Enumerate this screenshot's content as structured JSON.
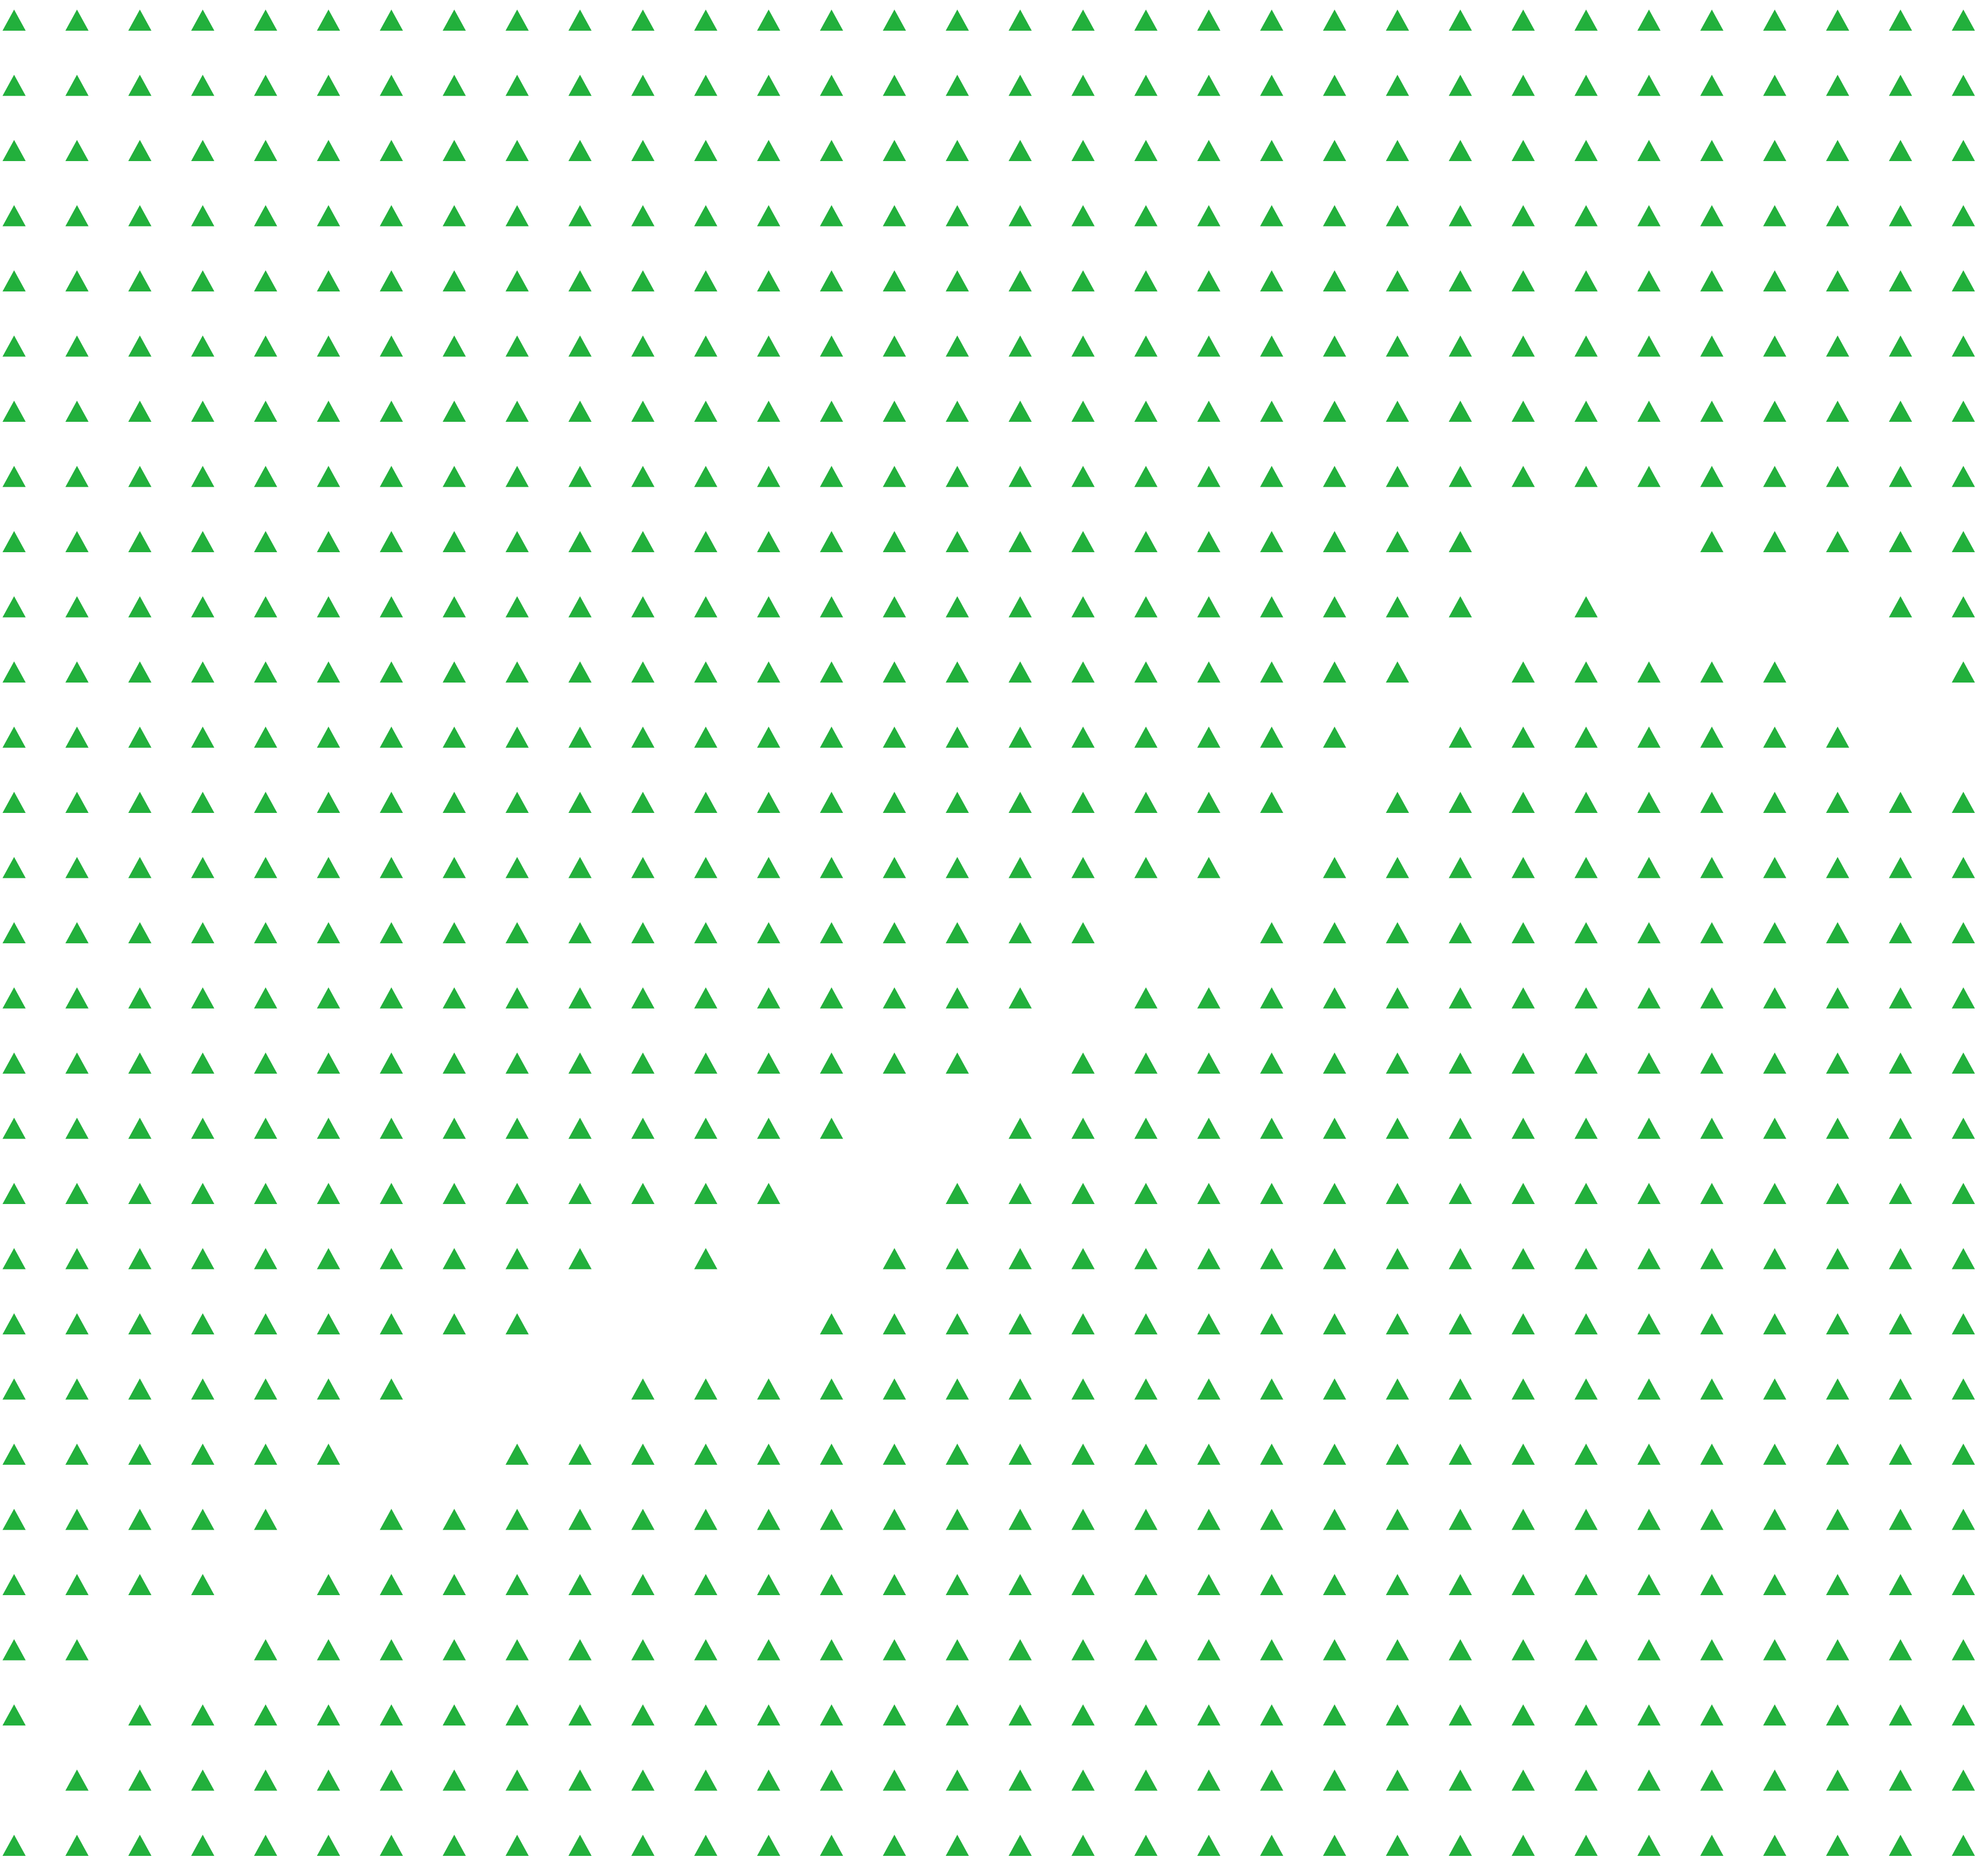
{
  "pattern": {
    "shape_icon": "triangle-icon",
    "color": "#22B03C",
    "background": "#FFFFFF",
    "columns": 32,
    "rows": 29,
    "empty_cells": [
      [
        8,
        24
      ],
      [
        8,
        25
      ],
      [
        8,
        26
      ],
      [
        9,
        24
      ],
      [
        9,
        26
      ],
      [
        9,
        27
      ],
      [
        9,
        28
      ],
      [
        9,
        29
      ],
      [
        10,
        23
      ],
      [
        10,
        29
      ],
      [
        10,
        30
      ],
      [
        11,
        22
      ],
      [
        11,
        30
      ],
      [
        11,
        31
      ],
      [
        12,
        21
      ],
      [
        13,
        20
      ],
      [
        14,
        18
      ],
      [
        14,
        19
      ],
      [
        15,
        17
      ],
      [
        16,
        16
      ],
      [
        17,
        14
      ],
      [
        17,
        15
      ],
      [
        18,
        13
      ],
      [
        18,
        14
      ],
      [
        19,
        10
      ],
      [
        19,
        12
      ],
      [
        19,
        13
      ],
      [
        20,
        9
      ],
      [
        20,
        10
      ],
      [
        20,
        11
      ],
      [
        20,
        12
      ],
      [
        21,
        7
      ],
      [
        21,
        8
      ],
      [
        21,
        9
      ],
      [
        22,
        6
      ],
      [
        22,
        7
      ],
      [
        23,
        5
      ],
      [
        24,
        4
      ],
      [
        25,
        2
      ],
      [
        25,
        3
      ],
      [
        26,
        1
      ],
      [
        27,
        0
      ]
    ]
  }
}
